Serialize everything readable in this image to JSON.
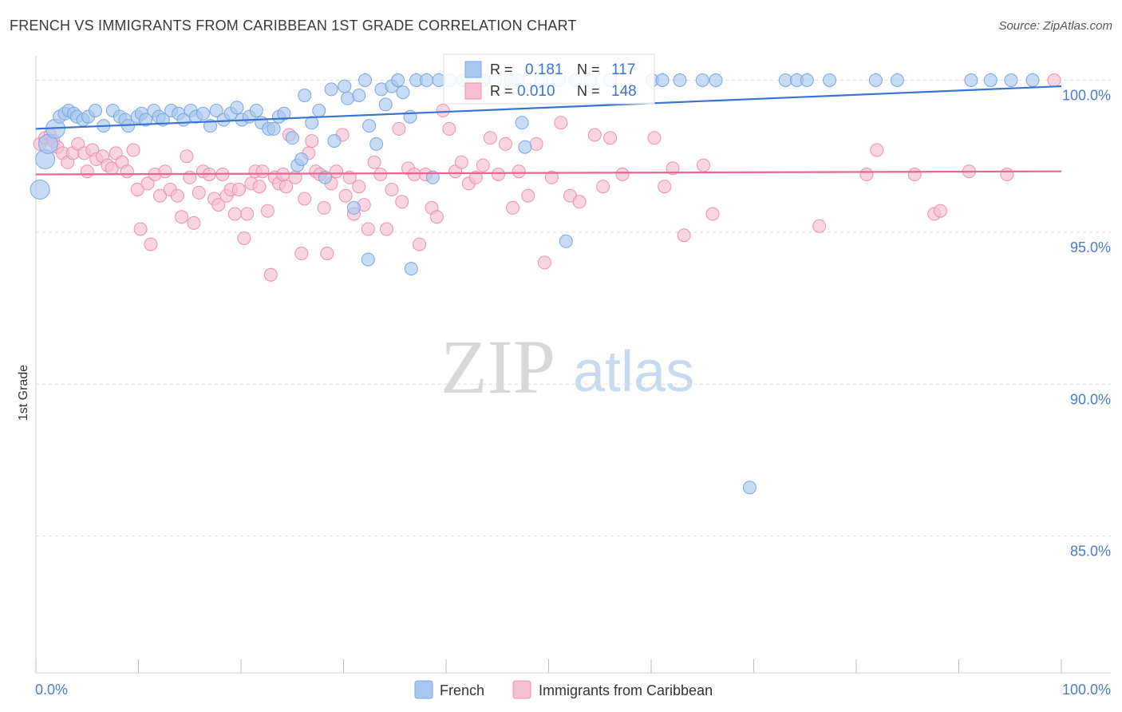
{
  "title": "FRENCH VS IMMIGRANTS FROM CARIBBEAN 1ST GRADE CORRELATION CHART",
  "source": "Source: ZipAtlas.com",
  "watermark": {
    "zip": "ZIP",
    "atlas": "atlas"
  },
  "legend_box": {
    "rows": [
      {
        "r_label": "R =",
        "r_value": "0.181",
        "n_label": "N =",
        "n_value": "117"
      },
      {
        "r_label": "R =",
        "r_value": "0.010",
        "n_label": "N =",
        "n_value": "148"
      }
    ]
  },
  "bottom_legend": [
    {
      "label": "French",
      "color": "#a9c8f0"
    },
    {
      "label": "Immigrants from Caribbean",
      "color": "#f4b4c8"
    }
  ],
  "colors": {
    "blue_fill": "#a9c8f0",
    "blue_stroke": "#7aa6e0",
    "blue_line": "#3b74cf",
    "pink_fill": "#f6bfd1",
    "pink_stroke": "#ec8fb0",
    "pink_line": "#e8678f",
    "grid": "#dddddd",
    "tick_text": "#4a7cc7"
  },
  "chart_data": {
    "type": "scatter",
    "title": "FRENCH VS IMMIGRANTS FROM CARIBBEAN 1ST GRADE CORRELATION CHART",
    "xlabel": "",
    "ylabel": "1st Grade",
    "xlim": [
      0,
      100
    ],
    "ylim": [
      80.5,
      100.8
    ],
    "x_tick_labels": [
      "0.0%",
      "100.0%"
    ],
    "y_ticks": [
      100,
      95,
      90,
      85
    ],
    "y_tick_labels": [
      "100.0%",
      "95.0%",
      "90.0%",
      "85.0%"
    ],
    "grid": true,
    "legend_position": "bottom-center",
    "series": [
      {
        "name": "French",
        "R": 0.181,
        "N": 117,
        "trend": {
          "x": [
            0,
            100
          ],
          "y": [
            98.4,
            99.8
          ]
        },
        "points": [
          [
            0.4,
            96.4
          ],
          [
            0.9,
            97.4
          ],
          [
            1.2,
            97.9
          ],
          [
            1.9,
            98.4
          ],
          [
            2.3,
            98.8
          ],
          [
            2.8,
            98.9
          ],
          [
            3.2,
            99.0
          ],
          [
            3.7,
            98.9
          ],
          [
            4.0,
            98.8
          ],
          [
            4.6,
            98.7
          ],
          [
            5.1,
            98.8
          ],
          [
            5.8,
            99.0
          ],
          [
            6.6,
            98.5
          ],
          [
            7.5,
            99.0
          ],
          [
            8.2,
            98.8
          ],
          [
            8.7,
            98.7
          ],
          [
            9.0,
            98.5
          ],
          [
            9.9,
            98.8
          ],
          [
            10.3,
            98.9
          ],
          [
            10.7,
            98.7
          ],
          [
            11.5,
            99.0
          ],
          [
            12.0,
            98.8
          ],
          [
            12.4,
            98.7
          ],
          [
            13.2,
            99.0
          ],
          [
            13.9,
            98.9
          ],
          [
            14.4,
            98.7
          ],
          [
            15.1,
            99.0
          ],
          [
            15.6,
            98.8
          ],
          [
            16.3,
            98.9
          ],
          [
            17.0,
            98.5
          ],
          [
            17.6,
            99.0
          ],
          [
            18.3,
            98.7
          ],
          [
            19.0,
            98.9
          ],
          [
            19.6,
            99.1
          ],
          [
            20.1,
            98.7
          ],
          [
            20.8,
            98.8
          ],
          [
            21.5,
            99.0
          ],
          [
            22.0,
            98.6
          ],
          [
            22.7,
            98.4
          ],
          [
            23.2,
            98.4
          ],
          [
            23.7,
            98.8
          ],
          [
            24.2,
            98.9
          ],
          [
            25.0,
            98.1
          ],
          [
            25.5,
            97.2
          ],
          [
            25.9,
            97.4
          ],
          [
            26.2,
            99.5
          ],
          [
            26.9,
            98.6
          ],
          [
            27.6,
            99.0
          ],
          [
            28.2,
            96.8
          ],
          [
            28.8,
            99.7
          ],
          [
            29.1,
            98.0
          ],
          [
            30.1,
            99.8
          ],
          [
            30.4,
            99.4
          ],
          [
            31.0,
            95.8
          ],
          [
            31.5,
            99.5
          ],
          [
            32.1,
            100.0
          ],
          [
            32.5,
            98.5
          ],
          [
            32.4,
            94.1
          ],
          [
            33.2,
            97.9
          ],
          [
            33.7,
            99.7
          ],
          [
            34.1,
            99.2
          ],
          [
            34.7,
            99.8
          ],
          [
            35.3,
            100.0
          ],
          [
            35.8,
            99.6
          ],
          [
            36.5,
            98.8
          ],
          [
            36.6,
            93.8
          ],
          [
            37.1,
            100.0
          ],
          [
            38.1,
            100.0
          ],
          [
            38.7,
            96.8
          ],
          [
            39.3,
            100.0
          ],
          [
            40.4,
            100.0
          ],
          [
            41.7,
            100.0
          ],
          [
            42.6,
            100.0
          ],
          [
            43.6,
            100.0
          ],
          [
            44.8,
            100.0
          ],
          [
            46.3,
            100.0
          ],
          [
            47.0,
            100.0
          ],
          [
            47.7,
            97.8
          ],
          [
            47.4,
            98.6
          ],
          [
            49.3,
            100.0
          ],
          [
            51.0,
            100.0
          ],
          [
            51.7,
            94.7
          ],
          [
            52.6,
            100.0
          ],
          [
            54.1,
            100.0
          ],
          [
            56.0,
            100.0
          ],
          [
            60.1,
            100.0
          ],
          [
            61.1,
            100.0
          ],
          [
            62.8,
            100.0
          ],
          [
            65.0,
            100.0
          ],
          [
            66.3,
            100.0
          ],
          [
            69.6,
            86.6
          ],
          [
            73.1,
            100.0
          ],
          [
            74.2,
            100.0
          ],
          [
            75.2,
            100.0
          ],
          [
            77.4,
            100.0
          ],
          [
            81.9,
            100.0
          ],
          [
            84.0,
            100.0
          ],
          [
            91.2,
            100.0
          ],
          [
            93.1,
            100.0
          ],
          [
            95.1,
            100.0
          ],
          [
            97.2,
            100.0
          ]
        ]
      },
      {
        "name": "Immigrants from Caribbean",
        "R": 0.01,
        "N": 148,
        "trend": {
          "x": [
            0,
            100
          ],
          "y": [
            96.9,
            97.0
          ]
        },
        "points": [
          [
            0.4,
            97.9
          ],
          [
            0.9,
            98.1
          ],
          [
            1.4,
            98.2
          ],
          [
            1.7,
            98.0
          ],
          [
            2.1,
            97.8
          ],
          [
            2.6,
            97.6
          ],
          [
            3.1,
            97.3
          ],
          [
            3.6,
            97.6
          ],
          [
            4.1,
            97.9
          ],
          [
            4.7,
            97.6
          ],
          [
            5.0,
            97.0
          ],
          [
            5.5,
            97.7
          ],
          [
            5.9,
            97.4
          ],
          [
            6.5,
            97.5
          ],
          [
            7.0,
            97.2
          ],
          [
            7.4,
            97.1
          ],
          [
            7.8,
            97.6
          ],
          [
            8.4,
            97.3
          ],
          [
            8.9,
            97.0
          ],
          [
            9.5,
            97.7
          ],
          [
            9.9,
            96.4
          ],
          [
            10.2,
            95.1
          ],
          [
            10.9,
            96.6
          ],
          [
            11.2,
            94.6
          ],
          [
            11.6,
            96.9
          ],
          [
            12.1,
            96.2
          ],
          [
            12.6,
            97.0
          ],
          [
            13.1,
            96.4
          ],
          [
            13.8,
            96.2
          ],
          [
            14.2,
            95.5
          ],
          [
            14.7,
            97.5
          ],
          [
            15.0,
            96.8
          ],
          [
            15.4,
            95.3
          ],
          [
            15.9,
            96.3
          ],
          [
            16.3,
            97.0
          ],
          [
            16.9,
            96.9
          ],
          [
            17.4,
            96.1
          ],
          [
            17.8,
            95.9
          ],
          [
            18.2,
            96.9
          ],
          [
            18.6,
            96.2
          ],
          [
            19.0,
            96.4
          ],
          [
            19.4,
            95.6
          ],
          [
            19.8,
            96.4
          ],
          [
            20.3,
            94.8
          ],
          [
            20.6,
            95.6
          ],
          [
            21.0,
            96.6
          ],
          [
            21.4,
            97.0
          ],
          [
            21.8,
            96.5
          ],
          [
            22.1,
            97.0
          ],
          [
            22.6,
            95.7
          ],
          [
            22.9,
            93.6
          ],
          [
            23.3,
            96.8
          ],
          [
            23.7,
            96.6
          ],
          [
            24.1,
            96.9
          ],
          [
            24.4,
            96.5
          ],
          [
            24.7,
            98.2
          ],
          [
            25.3,
            96.8
          ],
          [
            25.9,
            94.3
          ],
          [
            26.2,
            96.1
          ],
          [
            26.6,
            97.6
          ],
          [
            26.9,
            98.0
          ],
          [
            27.3,
            97.0
          ],
          [
            27.7,
            96.9
          ],
          [
            28.1,
            95.8
          ],
          [
            28.4,
            94.3
          ],
          [
            28.8,
            96.6
          ],
          [
            29.3,
            97.0
          ],
          [
            29.9,
            98.2
          ],
          [
            30.2,
            96.2
          ],
          [
            30.6,
            96.8
          ],
          [
            31.0,
            95.6
          ],
          [
            31.5,
            96.5
          ],
          [
            32.0,
            95.9
          ],
          [
            32.4,
            95.1
          ],
          [
            33.0,
            97.3
          ],
          [
            33.6,
            96.9
          ],
          [
            34.2,
            95.1
          ],
          [
            34.7,
            96.4
          ],
          [
            35.4,
            98.4
          ],
          [
            35.7,
            96.0
          ],
          [
            36.3,
            97.1
          ],
          [
            36.9,
            96.9
          ],
          [
            37.4,
            94.6
          ],
          [
            38.0,
            96.9
          ],
          [
            38.6,
            95.8
          ],
          [
            39.1,
            95.5
          ],
          [
            39.7,
            99.0
          ],
          [
            40.3,
            98.4
          ],
          [
            40.9,
            97.0
          ],
          [
            41.5,
            97.3
          ],
          [
            42.2,
            96.6
          ],
          [
            42.9,
            96.8
          ],
          [
            43.6,
            97.2
          ],
          [
            44.3,
            98.1
          ],
          [
            45.1,
            96.9
          ],
          [
            45.8,
            97.9
          ],
          [
            46.5,
            95.8
          ],
          [
            47.1,
            97.0
          ],
          [
            48.0,
            96.2
          ],
          [
            48.8,
            97.9
          ],
          [
            49.6,
            94.0
          ],
          [
            50.3,
            96.8
          ],
          [
            51.2,
            98.6
          ],
          [
            52.1,
            96.2
          ],
          [
            53.0,
            96.0
          ],
          [
            54.5,
            98.2
          ],
          [
            55.3,
            96.5
          ],
          [
            56.0,
            98.1
          ],
          [
            57.2,
            96.9
          ],
          [
            60.3,
            98.1
          ],
          [
            61.3,
            96.5
          ],
          [
            62.1,
            97.1
          ],
          [
            63.2,
            94.9
          ],
          [
            65.1,
            97.2
          ],
          [
            66.0,
            95.6
          ],
          [
            76.4,
            95.2
          ],
          [
            81.0,
            96.9
          ],
          [
            82.0,
            97.7
          ],
          [
            85.7,
            96.9
          ],
          [
            87.6,
            95.6
          ],
          [
            88.2,
            95.7
          ],
          [
            91.0,
            97.0
          ],
          [
            94.7,
            96.9
          ],
          [
            99.3,
            100.0
          ]
        ]
      }
    ]
  }
}
